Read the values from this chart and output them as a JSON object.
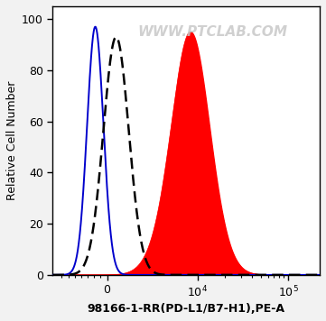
{
  "title": "",
  "xlabel": "98166-1-RR(PD-L1/B7-H1),PE-A",
  "ylabel": "Relative Cell Number",
  "watermark": "WWW.PTCLAB.COM",
  "ylim": [
    0,
    105
  ],
  "background_color": "#f2f2f2",
  "plot_bg_color": "#ffffff",
  "blue_color": "#0000cc",
  "dashed_color": "#000000",
  "red_color": "#ff0000",
  "red_fill_color": "#ff0000",
  "tick_label_fontsize": 9,
  "axis_label_fontsize": 9,
  "watermark_fontsize": 11,
  "watermark_color": "#c8c8c8",
  "watermark_alpha": 0.85
}
